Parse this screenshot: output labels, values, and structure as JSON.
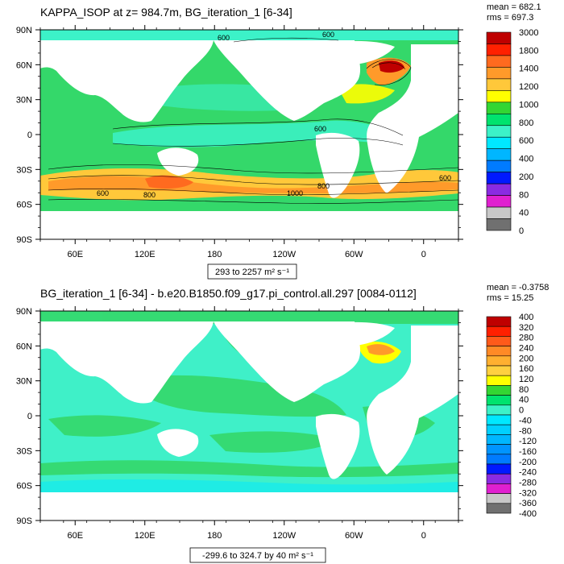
{
  "chart_data": [
    {
      "type": "heatmap",
      "title": "KAPPA_ISOP at z= 984.7m, BG_iteration_1 [6-34]",
      "stats": [
        "mean = 682.1",
        "rms = 697.3"
      ],
      "range_label": "293 to 2257 m² s⁻¹",
      "x_ticks": [
        "60E",
        "120E",
        "180",
        "120W",
        "60W",
        "0"
      ],
      "y_ticks": [
        "90N",
        "60N",
        "30N",
        "0",
        "30S",
        "60S",
        "90S"
      ],
      "colorbar_labels": [
        "3000",
        "1800",
        "1400",
        "1200",
        "1000",
        "800",
        "600",
        "400",
        "200",
        "80",
        "40",
        "0"
      ],
      "colorbar_colors": [
        "#bf0000",
        "#ff2000",
        "#ff6a1f",
        "#ff9a2a",
        "#ffc83a",
        "#ffff00",
        "#33d633",
        "#00e36e",
        "#3cf2c8",
        "#00e8ff",
        "#00b6ff",
        "#007bff",
        "#0019ff",
        "#8a2be2",
        "#e020d0",
        "#c8c8c8",
        "#707070"
      ],
      "ocean_fill": "#34d86a",
      "contour_labels": [
        "600",
        "800",
        "1000"
      ]
    },
    {
      "type": "heatmap",
      "title": "BG_iteration_1 [6-34] - b.e20.B1850.f09_g17.pi_control.all.297 [0084-0112]",
      "stats": [
        "mean = -0.3758",
        "rms = 15.25"
      ],
      "range_label": "-299.6 to 324.7 by 40 m² s⁻¹",
      "x_ticks": [
        "60E",
        "120E",
        "180",
        "120W",
        "60W",
        "0"
      ],
      "y_ticks": [
        "90N",
        "60N",
        "30N",
        "0",
        "30S",
        "60S",
        "90S"
      ],
      "colorbar_labels": [
        "400",
        "320",
        "280",
        "240",
        "200",
        "160",
        "120",
        "80",
        "40",
        "0",
        "-40",
        "-80",
        "-120",
        "-160",
        "-200",
        "-240",
        "-280",
        "-320",
        "-360",
        "-400"
      ],
      "colorbar_colors": [
        "#bf0000",
        "#ff2000",
        "#ff5a1a",
        "#ff8a26",
        "#ffb030",
        "#ffd040",
        "#ffff00",
        "#33d633",
        "#00e36e",
        "#3cf2c8",
        "#00e8ff",
        "#00d0ff",
        "#00b6ff",
        "#0094ff",
        "#007bff",
        "#0019ff",
        "#8a2be2",
        "#e020d0",
        "#c8c8c8",
        "#707070"
      ],
      "ocean_fill": "#3ff0c8"
    }
  ]
}
